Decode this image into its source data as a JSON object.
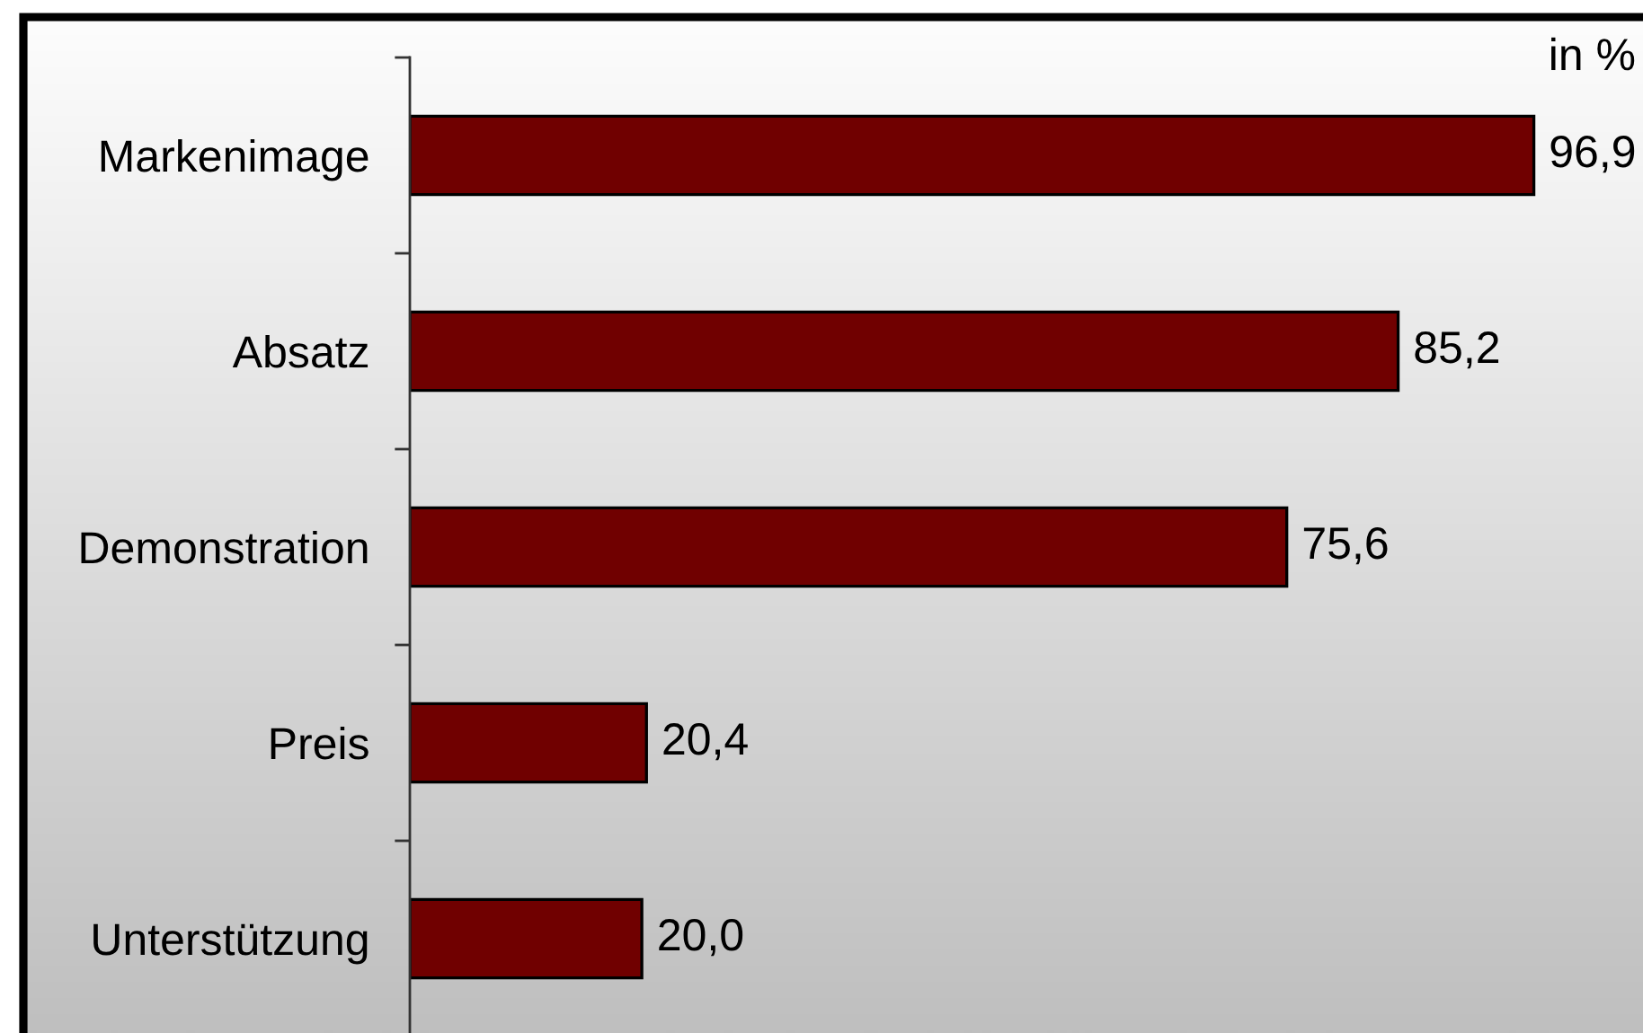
{
  "chart_data": {
    "type": "bar",
    "orientation": "horizontal",
    "categories": [
      "Markenimage",
      "Absatz",
      "Demonstration",
      "Preis",
      "Unterstützung"
    ],
    "values": [
      96.9,
      85.2,
      75.6,
      20.4,
      20.0
    ],
    "value_labels": [
      "96,9",
      "85,2",
      "75,6",
      "20,4",
      "20,0"
    ],
    "color": "#700000",
    "xlim": [
      0,
      106
    ],
    "tick_labels": "y",
    "annotations": [
      "in %"
    ]
  }
}
